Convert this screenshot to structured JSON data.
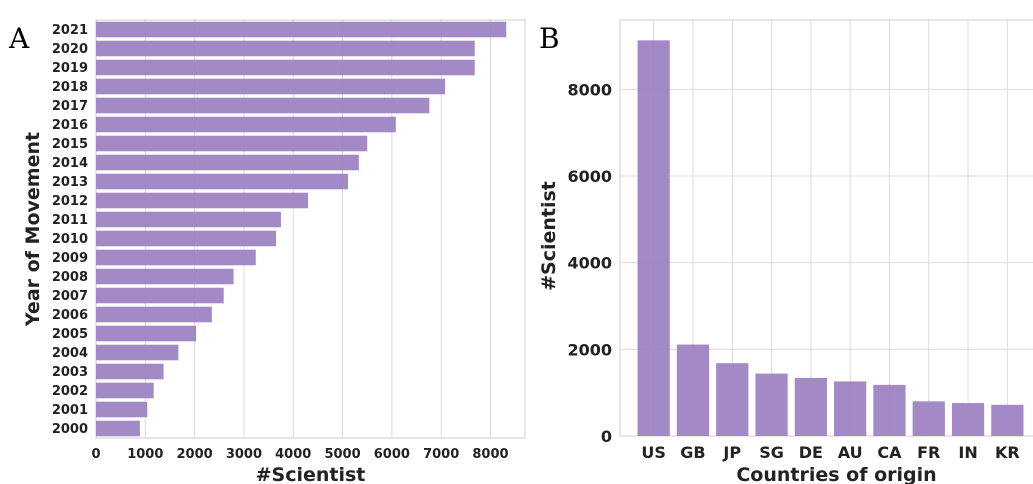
{
  "panels": {
    "left_letter": "A",
    "right_letter": "B"
  },
  "chart_data": [
    {
      "type": "bar",
      "orientation": "horizontal",
      "categories": [
        "2021",
        "2020",
        "2019",
        "2018",
        "2017",
        "2016",
        "2015",
        "2014",
        "2013",
        "2012",
        "2011",
        "2010",
        "2009",
        "2008",
        "2007",
        "2006",
        "2005",
        "2004",
        "2003",
        "2002",
        "2001",
        "2000"
      ],
      "values": [
        8320,
        7680,
        7680,
        7080,
        6760,
        6080,
        5500,
        5330,
        5110,
        4300,
        3750,
        3650,
        3240,
        2790,
        2590,
        2350,
        2030,
        1670,
        1370,
        1170,
        1040,
        890
      ],
      "xlabel": "#Scientist",
      "ylabel": "Year of Movement",
      "xlim": [
        0,
        8700
      ],
      "xticks": [
        0,
        1000,
        2000,
        3000,
        4000,
        5000,
        6000,
        7000,
        8000
      ],
      "grid": true,
      "color": "#9b7fc0"
    },
    {
      "type": "bar",
      "orientation": "vertical",
      "categories": [
        "US",
        "GB",
        "JP",
        "SG",
        "DE",
        "AU",
        "CA",
        "FR",
        "IN",
        "KR"
      ],
      "values": [
        9130,
        2110,
        1680,
        1440,
        1340,
        1260,
        1180,
        800,
        760,
        720
      ],
      "xlabel": "Countries of origin",
      "ylabel": "#Scientist",
      "ylim": [
        0,
        9600
      ],
      "yticks": [
        0,
        2000,
        4000,
        6000,
        8000
      ],
      "grid": true,
      "color": "#9b7fc0"
    }
  ]
}
